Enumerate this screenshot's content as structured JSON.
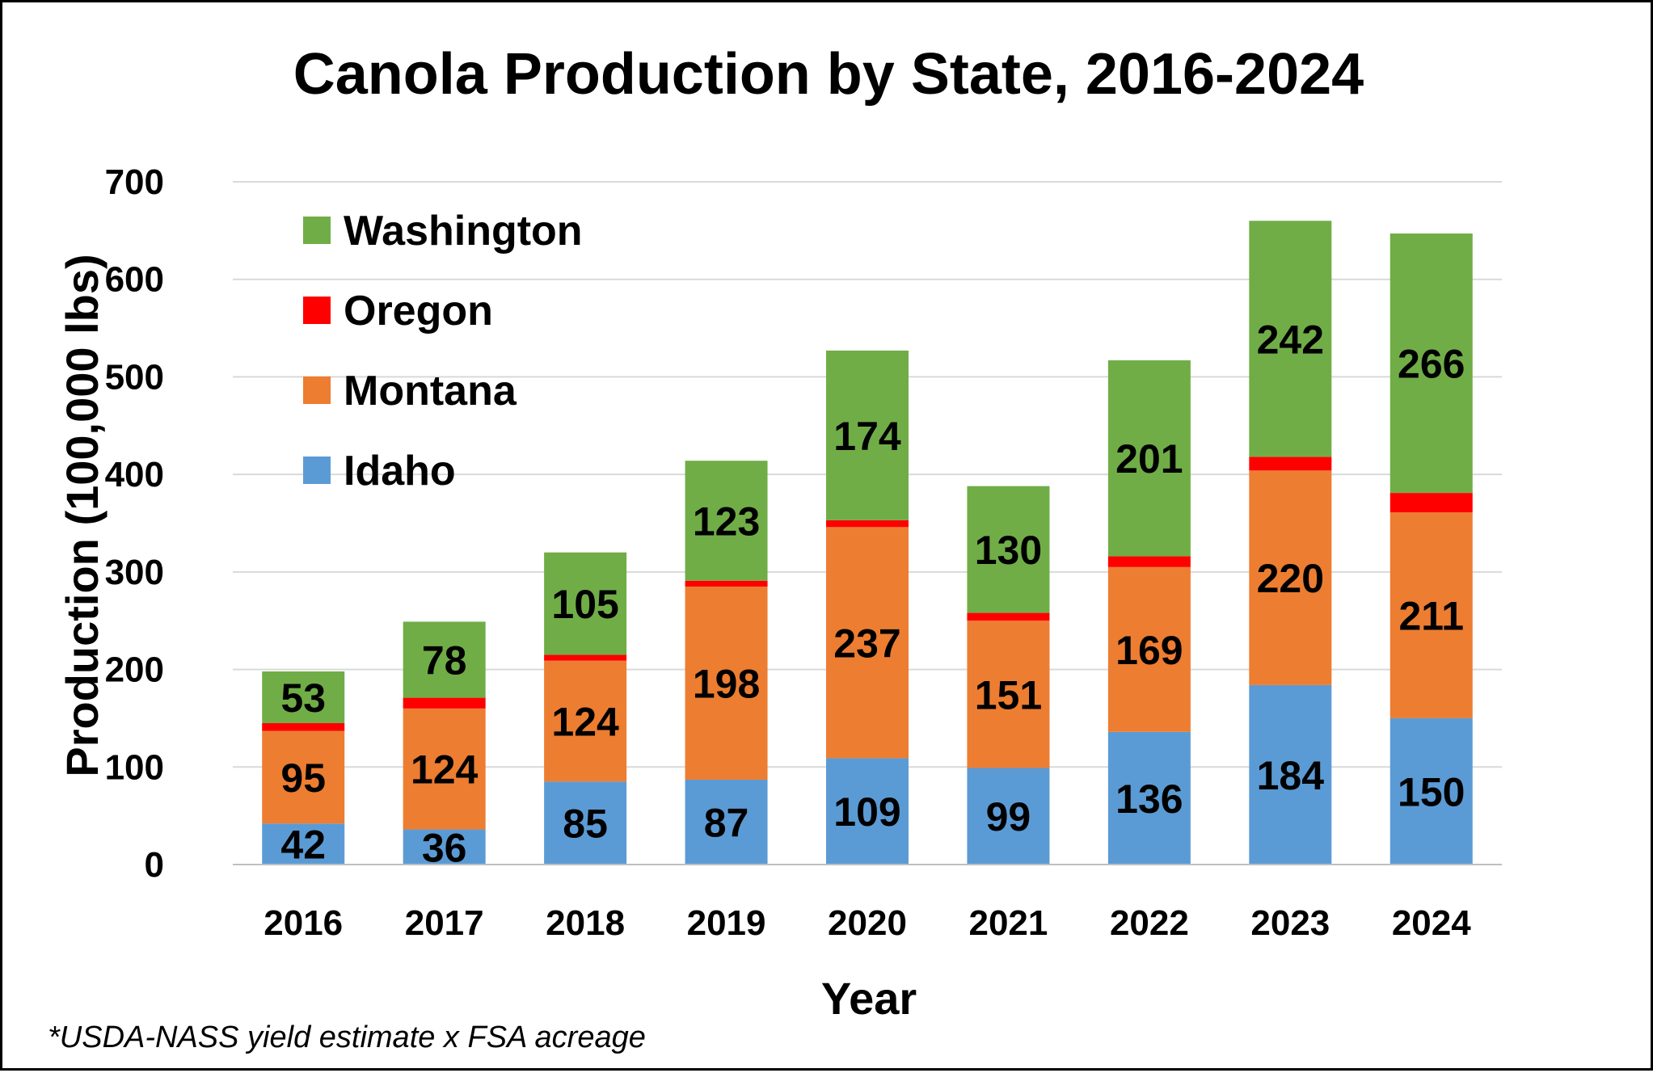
{
  "chart_data": {
    "type": "bar",
    "stacked": true,
    "title": "Canola Production by State, 2016-2024",
    "xlabel": "Year",
    "ylabel": "Production (100,000 lbs)",
    "ylim": [
      0,
      700
    ],
    "yticks": [
      0,
      100,
      200,
      300,
      400,
      500,
      600,
      700
    ],
    "grid": true,
    "legend_position": "top-left",
    "footnote": "*USDA-NASS yield estimate x FSA acreage",
    "categories": [
      "2016",
      "2017",
      "2018",
      "2019",
      "2020",
      "2021",
      "2022",
      "2023",
      "2024"
    ],
    "series": [
      {
        "name": "Idaho",
        "color": "#5B9BD5",
        "values": [
          42,
          36,
          85,
          87,
          109,
          99,
          136,
          184,
          150
        ],
        "labeled": true
      },
      {
        "name": "Montana",
        "color": "#ED7D31",
        "values": [
          95,
          124,
          124,
          198,
          237,
          151,
          169,
          220,
          211
        ],
        "labeled": true
      },
      {
        "name": "Oregon",
        "color": "#FF0000",
        "values": [
          8,
          11,
          6,
          6,
          7,
          8,
          11,
          14,
          20
        ],
        "labeled": false
      },
      {
        "name": "Washington",
        "color": "#70AD47",
        "values": [
          53,
          78,
          105,
          123,
          174,
          130,
          201,
          242,
          266
        ],
        "labeled": true
      }
    ]
  }
}
